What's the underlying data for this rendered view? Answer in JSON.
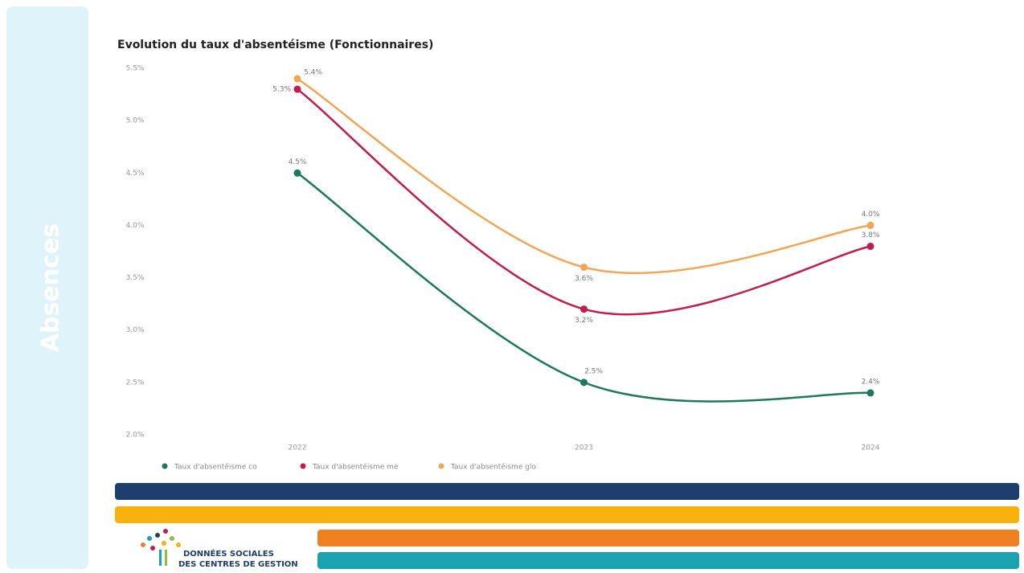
{
  "sidebar": "Absences",
  "logo": [
    "DONNÉES SOCIALES",
    "DES CENTRES DE GESTION"
  ],
  "chart_data": {
    "type": "line",
    "title": "Evolution du taux d'absentéisme (Fonctionnaires)",
    "categories": [
      "2022",
      "2023",
      "2024"
    ],
    "series": [
      {
        "name": "Taux d'absentéisme co",
        "color": "#1b7a58",
        "values": [
          4.5,
          2.5,
          2.4
        ],
        "value_labels": [
          "4.5%",
          "2.5%",
          "2.4%"
        ]
      },
      {
        "name": "Taux d'absentéisme me",
        "color": "#c51a4d",
        "values": [
          5.3,
          3.2,
          3.8
        ],
        "value_labels": [
          "5.3%",
          "3.2%",
          "3.8%"
        ]
      },
      {
        "name": "Taux d'absentéisme glo",
        "color": "#f3a551",
        "values": [
          5.4,
          3.6,
          4.0
        ],
        "value_labels": [
          "5.4%",
          "3.6%",
          "4.0%"
        ]
      }
    ],
    "ylim": [
      2.0,
      5.5
    ],
    "yticks": [
      {
        "value": 2.0,
        "label": "2.0%"
      },
      {
        "value": 2.5,
        "label": "2.5%"
      },
      {
        "value": 3.0,
        "label": "3.0%"
      },
      {
        "value": 3.5,
        "label": "3.5%"
      },
      {
        "value": 4.0,
        "label": "4.0%"
      },
      {
        "value": 4.5,
        "label": "4.5%"
      },
      {
        "value": 5.0,
        "label": "5.0%"
      },
      {
        "value": 5.5,
        "label": "5.5%"
      }
    ],
    "grid": false,
    "legend": "bottom-left"
  }
}
